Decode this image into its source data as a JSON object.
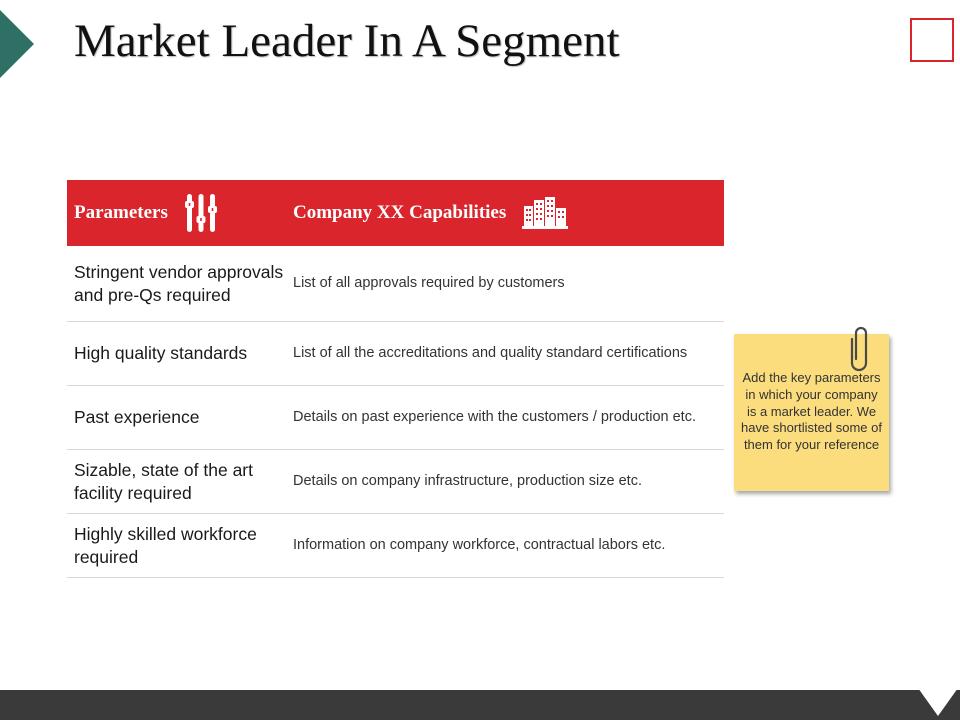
{
  "slide": {
    "title": "Market Leader In A Segment"
  },
  "table": {
    "headers": {
      "parameters": "Parameters",
      "capabilities": "Company XX Capabilities"
    },
    "rows": [
      {
        "parameter": "Stringent vendor approvals and pre-Qs required",
        "capability": "List of all approvals required by customers"
      },
      {
        "parameter": "High quality standards",
        "capability": "List of all the accreditations and quality standard certifications"
      },
      {
        "parameter": "Past experience",
        "capability": "Details on past experience with the customers / production etc."
      },
      {
        "parameter": "Sizable, state of the art facility required",
        "capability": "Details on company infrastructure, production size etc."
      },
      {
        "parameter": "Highly skilled workforce required",
        "capability": "Information on company workforce, contractual labors etc."
      }
    ]
  },
  "sticky_note": {
    "text": "Add the key parameters in which your company is a market leader. We have shortlisted some of them for your reference"
  },
  "icons": {
    "parameters_header": "sliders-icon",
    "capabilities_header": "buildings-icon",
    "note_clip": "paperclip-icon"
  },
  "colors": {
    "accent_red": "#d9252b",
    "teal": "#2e6f66",
    "note_yellow": "#fbdd7e",
    "footer": "#3a3a3a"
  }
}
